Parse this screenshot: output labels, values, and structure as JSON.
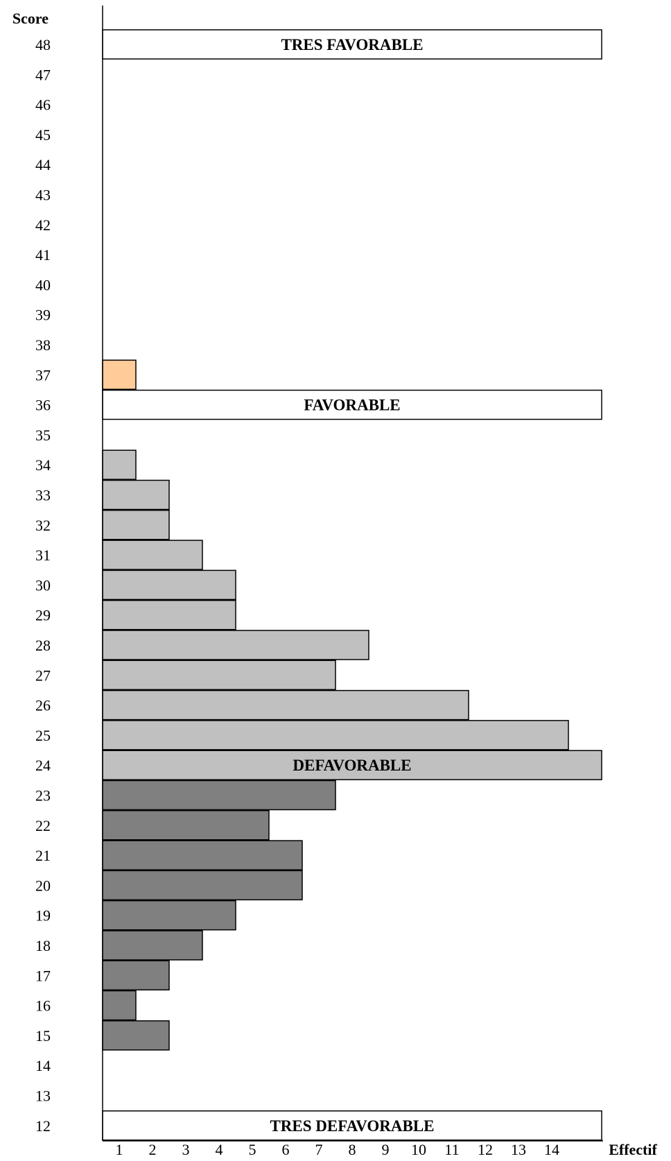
{
  "chart_data": {
    "type": "bar",
    "orientation": "horizontal",
    "ylabel": "Score",
    "xlabel": "Effectif",
    "y_ticks": [
      48,
      47,
      46,
      45,
      44,
      43,
      42,
      41,
      40,
      39,
      38,
      37,
      36,
      35,
      34,
      33,
      32,
      31,
      30,
      29,
      28,
      27,
      26,
      25,
      24,
      23,
      22,
      21,
      20,
      19,
      18,
      17,
      16,
      15,
      14,
      13,
      12
    ],
    "x_ticks": [
      1,
      2,
      3,
      4,
      5,
      6,
      7,
      8,
      9,
      10,
      11,
      12,
      13,
      14
    ],
    "xlim": [
      0,
      15
    ],
    "ylim": [
      12,
      48
    ],
    "colors": {
      "defavorable_dark": "#808080",
      "defavorable_light": "#c0c0c0",
      "favorable": "#ffcc99",
      "band_fill": "#ffffff",
      "stroke": "#000000"
    },
    "bars": [
      {
        "score": 37,
        "value": 1,
        "color": "favorable"
      },
      {
        "score": 34,
        "value": 1,
        "color": "defavorable_light"
      },
      {
        "score": 33,
        "value": 2,
        "color": "defavorable_light"
      },
      {
        "score": 32,
        "value": 2,
        "color": "defavorable_light"
      },
      {
        "score": 31,
        "value": 3,
        "color": "defavorable_light"
      },
      {
        "score": 30,
        "value": 4,
        "color": "defavorable_light"
      },
      {
        "score": 29,
        "value": 4,
        "color": "defavorable_light"
      },
      {
        "score": 28,
        "value": 8,
        "color": "defavorable_light"
      },
      {
        "score": 27,
        "value": 7,
        "color": "defavorable_light"
      },
      {
        "score": 26,
        "value": 11,
        "color": "defavorable_light"
      },
      {
        "score": 25,
        "value": 14,
        "color": "defavorable_light"
      },
      {
        "score": 23,
        "value": 7,
        "color": "defavorable_dark"
      },
      {
        "score": 22,
        "value": 5,
        "color": "defavorable_dark"
      },
      {
        "score": 21,
        "value": 6,
        "color": "defavorable_dark"
      },
      {
        "score": 20,
        "value": 6,
        "color": "defavorable_dark"
      },
      {
        "score": 19,
        "value": 4,
        "color": "defavorable_dark"
      },
      {
        "score": 18,
        "value": 3,
        "color": "defavorable_dark"
      },
      {
        "score": 17,
        "value": 2,
        "color": "defavorable_dark"
      },
      {
        "score": 16,
        "value": 1,
        "color": "defavorable_dark"
      },
      {
        "score": 15,
        "value": 2,
        "color": "defavorable_dark"
      }
    ],
    "bands": [
      {
        "score": 48,
        "label": "TRES FAVORABLE",
        "color": "band_fill"
      },
      {
        "score": 36,
        "label": "FAVORABLE",
        "color": "band_fill"
      },
      {
        "score": 24,
        "label": "DEFAVORABLE",
        "color": "defavorable_light"
      },
      {
        "score": 12,
        "label": "TRES DEFAVORABLE",
        "color": "band_fill"
      }
    ]
  }
}
